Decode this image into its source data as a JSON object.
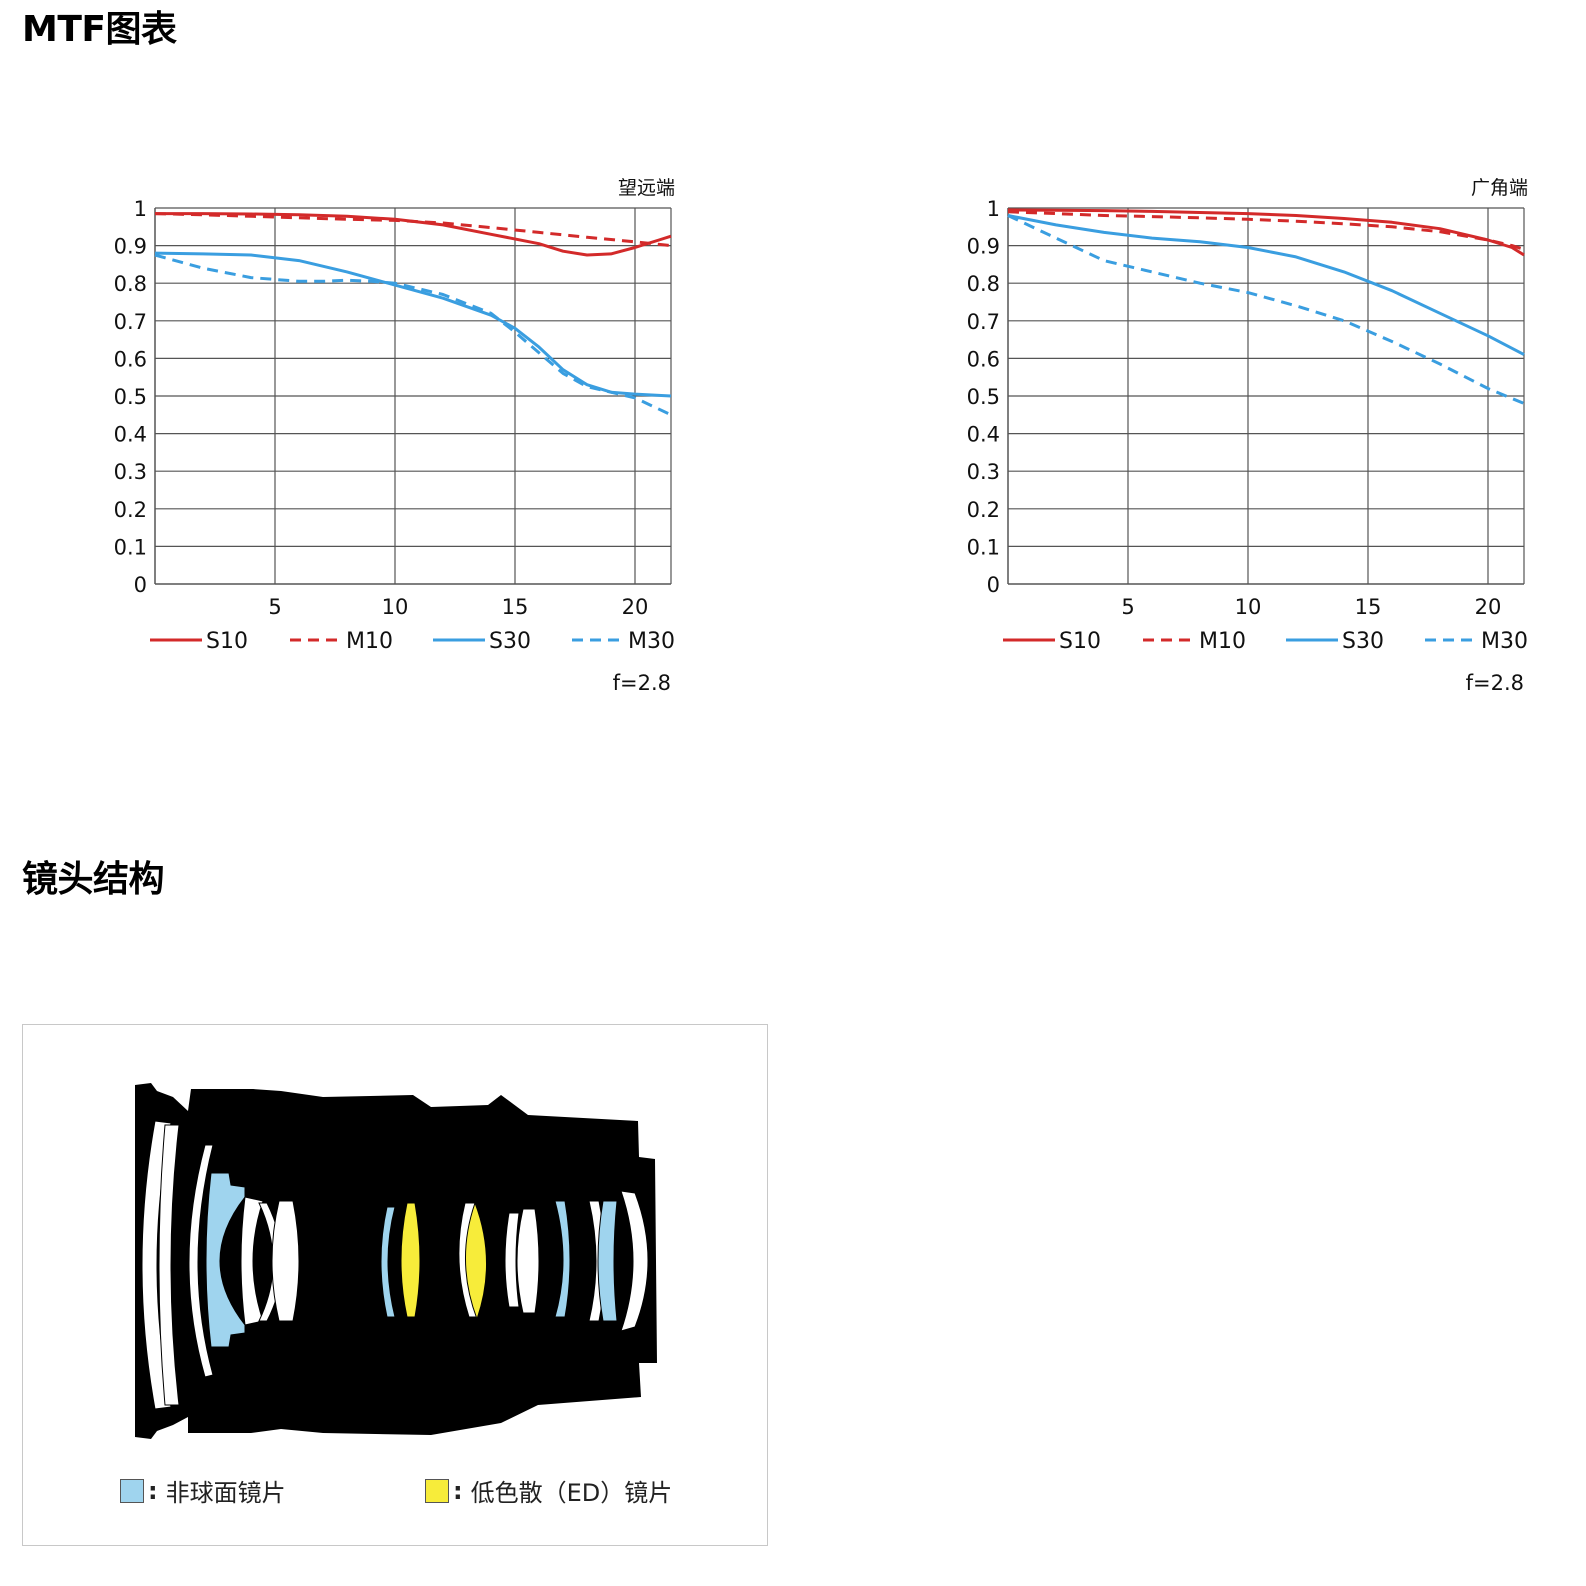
{
  "sections": {
    "mtf_title": "MTF图表",
    "lens_title": "镜头结构"
  },
  "chart_data": [
    {
      "type": "line",
      "title": "望远端",
      "footnote": "f=2.8",
      "xlim": [
        0,
        21.5
      ],
      "ylim": [
        0,
        1
      ],
      "x_ticks": [
        5,
        10,
        15,
        20
      ],
      "y_ticks": [
        0,
        0.1,
        0.2,
        0.3,
        0.4,
        0.5,
        0.6,
        0.7,
        0.8,
        0.9,
        1
      ],
      "y_tick_labels": [
        "0",
        "0.1",
        "0.2",
        "0.3",
        "0.4",
        "0.5",
        "0.6",
        "0.7",
        "0.8",
        "0.9",
        "1"
      ],
      "grid": true,
      "legend_position": "bottom",
      "series": [
        {
          "name": "S10",
          "color": "#d32a2a",
          "dash": false,
          "x": [
            0,
            2,
            4,
            6,
            8,
            10,
            12,
            14,
            16,
            17,
            18,
            19,
            20,
            21,
            21.5
          ],
          "y": [
            0.985,
            0.985,
            0.984,
            0.982,
            0.978,
            0.97,
            0.955,
            0.93,
            0.905,
            0.885,
            0.875,
            0.878,
            0.895,
            0.915,
            0.925
          ]
        },
        {
          "name": "M10",
          "color": "#d32a2a",
          "dash": true,
          "x": [
            0,
            2,
            4,
            6,
            8,
            10,
            12,
            14,
            16,
            18,
            20,
            21.5
          ],
          "y": [
            0.985,
            0.982,
            0.978,
            0.974,
            0.97,
            0.967,
            0.96,
            0.948,
            0.935,
            0.922,
            0.91,
            0.9
          ]
        },
        {
          "name": "S30",
          "color": "#3a9ee0",
          "dash": false,
          "x": [
            0,
            2,
            4,
            6,
            8,
            10,
            12,
            14,
            15,
            16,
            17,
            18,
            19,
            20,
            21.5
          ],
          "y": [
            0.88,
            0.878,
            0.875,
            0.86,
            0.83,
            0.795,
            0.76,
            0.715,
            0.68,
            0.63,
            0.57,
            0.53,
            0.51,
            0.505,
            0.5
          ]
        },
        {
          "name": "M30",
          "color": "#3a9ee0",
          "dash": true,
          "x": [
            0,
            2,
            4,
            6,
            7,
            8,
            9,
            10,
            12,
            14,
            15,
            16,
            17,
            18,
            19,
            20,
            21.5
          ],
          "y": [
            0.875,
            0.84,
            0.815,
            0.805,
            0.805,
            0.808,
            0.805,
            0.8,
            0.77,
            0.72,
            0.67,
            0.615,
            0.56,
            0.525,
            0.51,
            0.495,
            0.45
          ]
        }
      ]
    },
    {
      "type": "line",
      "title": "广角端",
      "footnote": "f=2.8",
      "xlim": [
        0,
        21.5
      ],
      "ylim": [
        0,
        1
      ],
      "x_ticks": [
        5,
        10,
        15,
        20
      ],
      "y_ticks": [
        0,
        0.1,
        0.2,
        0.3,
        0.4,
        0.5,
        0.6,
        0.7,
        0.8,
        0.9,
        1
      ],
      "y_tick_labels": [
        "0",
        "0.1",
        "0.2",
        "0.3",
        "0.4",
        "0.5",
        "0.6",
        "0.7",
        "0.8",
        "0.9",
        "1"
      ],
      "grid": true,
      "legend_position": "bottom",
      "series": [
        {
          "name": "S10",
          "color": "#d32a2a",
          "dash": false,
          "x": [
            0,
            2,
            4,
            6,
            8,
            10,
            12,
            14,
            16,
            18,
            20,
            21,
            21.5
          ],
          "y": [
            0.995,
            0.994,
            0.993,
            0.991,
            0.988,
            0.985,
            0.98,
            0.972,
            0.962,
            0.945,
            0.915,
            0.895,
            0.875
          ]
        },
        {
          "name": "M10",
          "color": "#d32a2a",
          "dash": true,
          "x": [
            0,
            2,
            4,
            6,
            8,
            10,
            12,
            14,
            16,
            18,
            20,
            21,
            21.5
          ],
          "y": [
            0.99,
            0.985,
            0.98,
            0.977,
            0.974,
            0.97,
            0.965,
            0.958,
            0.95,
            0.937,
            0.915,
            0.9,
            0.89
          ]
        },
        {
          "name": "S30",
          "color": "#3a9ee0",
          "dash": false,
          "x": [
            0,
            2,
            4,
            6,
            8,
            10,
            12,
            14,
            16,
            18,
            20,
            21.5
          ],
          "y": [
            0.98,
            0.955,
            0.935,
            0.92,
            0.91,
            0.895,
            0.87,
            0.83,
            0.78,
            0.72,
            0.66,
            0.61
          ]
        },
        {
          "name": "M30",
          "color": "#3a9ee0",
          "dash": true,
          "x": [
            0,
            2,
            4,
            6,
            8,
            10,
            12,
            14,
            16,
            18,
            20,
            21.5
          ],
          "y": [
            0.98,
            0.92,
            0.86,
            0.83,
            0.8,
            0.775,
            0.74,
            0.7,
            0.645,
            0.585,
            0.52,
            0.48
          ]
        }
      ]
    }
  ],
  "lens_diagram": {
    "colors": {
      "barrel": "#000000",
      "aspherical": "#9fd4ee",
      "ed": "#f7ec3a",
      "normal": "#ffffff"
    },
    "legend": [
      {
        "label": "非球面镜片",
        "color": "#9fd4ee"
      },
      {
        "label": "低色散（ED）镜片",
        "color": "#f7ec3a"
      }
    ]
  }
}
